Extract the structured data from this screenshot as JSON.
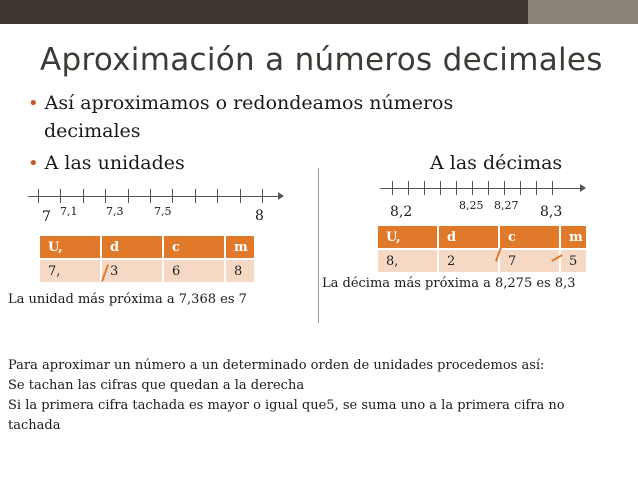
{
  "title": "Aproximación a números decimales",
  "bullets": {
    "line1": "Así aproximamos o redondeamos números",
    "line2": "decimales",
    "units": "A las unidades",
    "tenths": "A las décimas"
  },
  "left_number_line": {
    "start": "7",
    "end": "8",
    "marks": [
      "7,1",
      "7,3",
      "7,5"
    ]
  },
  "right_number_line": {
    "start": "8,2",
    "end": "8,3",
    "marks": [
      "8,25",
      "8,27"
    ]
  },
  "left_table": {
    "headers": [
      "U,",
      "d",
      "c",
      "m"
    ],
    "row": [
      "7,",
      "3",
      "6",
      "8"
    ]
  },
  "right_table": {
    "headers": [
      "U,",
      "d",
      "c",
      "m"
    ],
    "row": [
      "8,",
      "2",
      "7",
      "5"
    ]
  },
  "left_caption": "La unidad más próxima a 7,368 es 7",
  "right_caption": "La décima más próxima a 8,275 es 8,3",
  "paragraph": [
    "Para aproximar un número a un determinado orden de unidades procedemos así:",
    "Se tachan las cifras que quedan a la derecha",
    "Si la primera cifra tachada es mayor o igual que5, se suma uno a la primera cifra no",
    "tachada"
  ],
  "colors": {
    "accent": "#e07a2a",
    "cell": "#f6d9c5",
    "bullet": "#c0572a",
    "topbar": "#3d3530"
  }
}
